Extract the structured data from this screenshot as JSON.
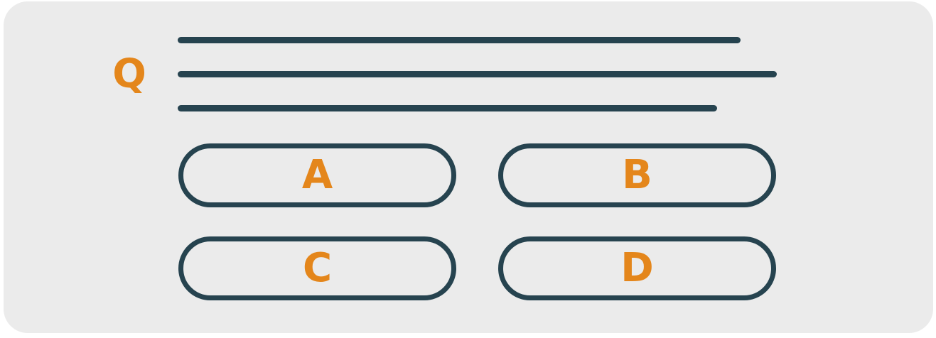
{
  "question": {
    "label": "Q"
  },
  "options": [
    {
      "label": "A"
    },
    {
      "label": "B"
    },
    {
      "label": "C"
    },
    {
      "label": "D"
    }
  ],
  "colors": {
    "background": "#ebebeb",
    "accent": "#e4861b",
    "outline": "#26434f"
  }
}
